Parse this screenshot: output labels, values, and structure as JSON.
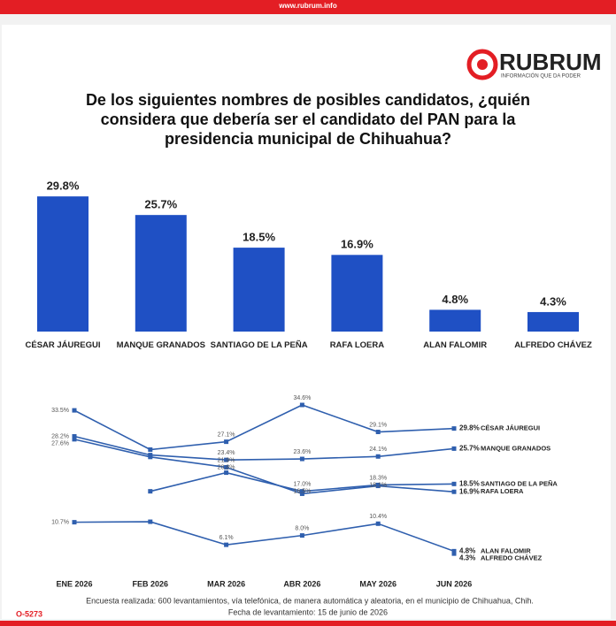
{
  "header": {
    "top_url": "www.rubrum.info",
    "top_code": "O-5273",
    "logo": "RUBRUM",
    "tagline": "INFORMACIÓN QUE DA PODER"
  },
  "chart_data": [
    {
      "type": "bar",
      "title": "De los siguientes nombres de posibles candidatos, ¿quién considera que debería ser el candidato del PAN para la presidencia municipal de Chihuahua?",
      "categories": [
        "CÉSAR JÁUREGUI",
        "MANQUE GRANADOS",
        "SANTIAGO DE LA PEÑA",
        "RAFA LOERA",
        "ALAN FALOMIR",
        "ALFREDO CHÁVEZ"
      ],
      "values": [
        29.8,
        25.7,
        18.5,
        16.9,
        4.8,
        4.3
      ],
      "value_labels": [
        "29.8%",
        "25.7%",
        "18.5%",
        "16.9%",
        "4.8%",
        "4.3%"
      ],
      "color": "#1f50c4"
    },
    {
      "type": "line",
      "categories": [
        "ENE 2026",
        "FEB 2026",
        "MAR 2026",
        "ABR 2026",
        "MAY 2026",
        "JUN 2026"
      ],
      "color": "#2f5fae",
      "series": [
        {
          "name": "CÉSAR JÁUREGUI",
          "values": [
            33.5,
            25.5,
            27.1,
            34.6,
            29.1,
            29.8
          ],
          "value_labels": [
            "33.5%",
            null,
            "27.1%",
            "34.6%",
            "29.1%",
            "29.8%"
          ]
        },
        {
          "name": "MANQUE GRANADOS",
          "values": [
            28.2,
            24.4,
            23.4,
            23.6,
            24.1,
            25.7
          ],
          "value_labels": [
            "28.2%",
            null,
            "23.4%",
            "23.6%",
            "24.1%",
            "25.7%"
          ]
        },
        {
          "name": "SANTIAGO DE LA PEÑA",
          "values": [
            null,
            17.0,
            20.8,
            17.0,
            18.3,
            18.5
          ],
          "value_labels": [
            null,
            null,
            "20.8%",
            "17.0%",
            "18.3%",
            "18.5%"
          ]
        },
        {
          "name": "RAFA LOERA",
          "values": [
            27.6,
            24.0,
            21.9,
            16.5,
            18.1,
            16.9
          ],
          "value_labels": [
            "27.6%",
            null,
            "21.9%",
            "16.5%",
            "18.1%",
            "16.9%"
          ]
        },
        {
          "name": "ALAN FALOMIR",
          "values": [
            10.7,
            10.8,
            6.1,
            8.0,
            10.4,
            4.8
          ],
          "value_labels": [
            "10.7%",
            null,
            "6.1%",
            "8.0%",
            "10.4%",
            "4.8%"
          ]
        },
        {
          "name": "ALFREDO CHÁVEZ",
          "values": [
            null,
            null,
            null,
            null,
            null,
            4.3
          ],
          "value_labels": [
            null,
            null,
            null,
            null,
            null,
            "4.3%"
          ]
        }
      ]
    }
  ],
  "footer": {
    "note": "Encuesta realizada: 600 levantamientos, vía telefónica, de manera automática y aleatoria, en el municipio de Chihuahua, Chih.",
    "date": "Fecha de levantamiento: 15 de junio de 2026",
    "code": "O-5273"
  }
}
